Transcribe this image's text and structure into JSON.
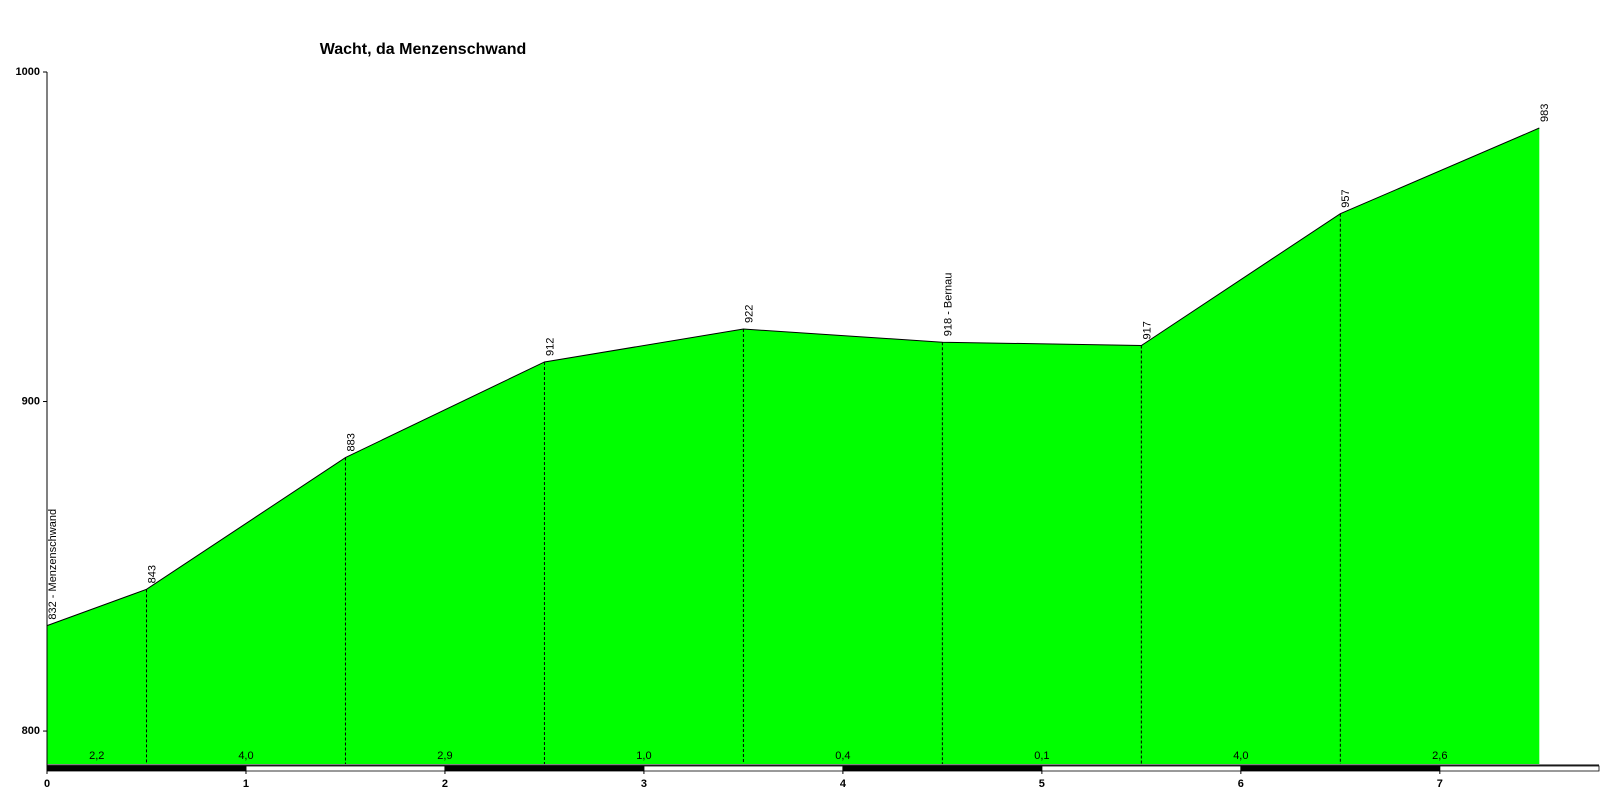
{
  "chart_data": {
    "type": "area",
    "title": "Wacht, da Menzenschwand",
    "x": [
      0,
      0.5,
      1.5,
      2.5,
      3.5,
      4.5,
      5.5,
      6.5,
      7.5
    ],
    "values": [
      832,
      843,
      883,
      912,
      922,
      918,
      917,
      957,
      983
    ],
    "value_labels": [
      "832 - Menzenschwand",
      "843",
      "883",
      "912",
      "922",
      "918 - Bernau",
      "917",
      "957",
      "983"
    ],
    "segment_labels": [
      "2,2",
      "4,0",
      "2,9",
      "1,0",
      "0,4",
      "0,1",
      "4,0",
      "2,6"
    ],
    "color": "#00ff00",
    "xlim": [
      0,
      7.8
    ],
    "xticks": [
      0,
      1,
      2,
      3,
      4,
      5,
      6,
      7
    ],
    "ylim": [
      790,
      1000
    ],
    "yticks": [
      800,
      900,
      1000
    ]
  }
}
